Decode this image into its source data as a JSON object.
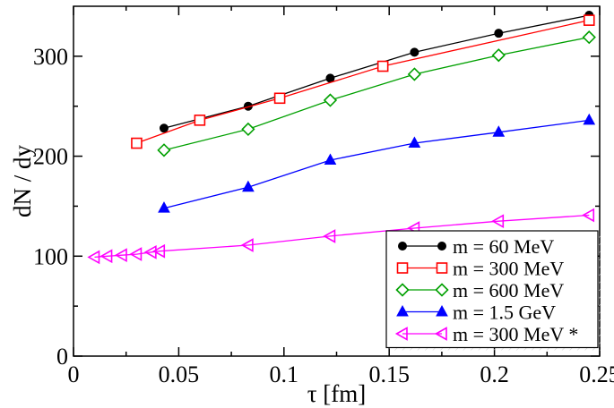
{
  "chart_data": {
    "type": "line",
    "title": "",
    "xlabel": "τ [fm]",
    "ylabel": "dN / dy",
    "xlim": [
      0,
      0.25
    ],
    "ylim": [
      0,
      350
    ],
    "x_ticks": [
      0,
      0.05,
      0.1,
      0.15,
      0.2,
      0.25
    ],
    "x_tick_labels": [
      "0",
      "0.05",
      "0.1",
      "0.15",
      "0.2",
      "0.25"
    ],
    "y_ticks": [
      0,
      100,
      200,
      300
    ],
    "y_tick_labels": [
      "0",
      "100",
      "200",
      "300"
    ],
    "grid": false,
    "legend_position": "bottom-right",
    "series": [
      {
        "name": "m = 60 MeV",
        "color": "#000000",
        "marker": "filled-circle",
        "x": [
          0.043,
          0.083,
          0.122,
          0.162,
          0.202,
          0.245
        ],
        "y": [
          228,
          250,
          278,
          304,
          323,
          341
        ]
      },
      {
        "name": "m = 300 MeV",
        "color": "#ff0000",
        "marker": "open-square",
        "x": [
          0.03,
          0.06,
          0.098,
          0.147,
          0.245
        ],
        "y": [
          213,
          236,
          258,
          290,
          336
        ]
      },
      {
        "name": "m = 600 MeV",
        "color": "#00a000",
        "marker": "open-diamond",
        "x": [
          0.043,
          0.083,
          0.122,
          0.162,
          0.202,
          0.245
        ],
        "y": [
          206,
          227,
          256,
          282,
          301,
          319
        ]
      },
      {
        "name": "m = 1.5 GeV",
        "color": "#0000ff",
        "marker": "filled-triangle-up",
        "x": [
          0.043,
          0.083,
          0.122,
          0.162,
          0.202,
          0.245
        ],
        "y": [
          148,
          169,
          196,
          213,
          224,
          236
        ]
      },
      {
        "name": "m = 300 MeV *",
        "color": "#ff00ff",
        "marker": "open-triangle-left",
        "x": [
          0.01,
          0.016,
          0.023,
          0.03,
          0.037,
          0.041,
          0.083,
          0.122,
          0.162,
          0.202,
          0.245
        ],
        "y": [
          99,
          100,
          101,
          102,
          104,
          105,
          111,
          120,
          128,
          135,
          141
        ]
      }
    ]
  }
}
